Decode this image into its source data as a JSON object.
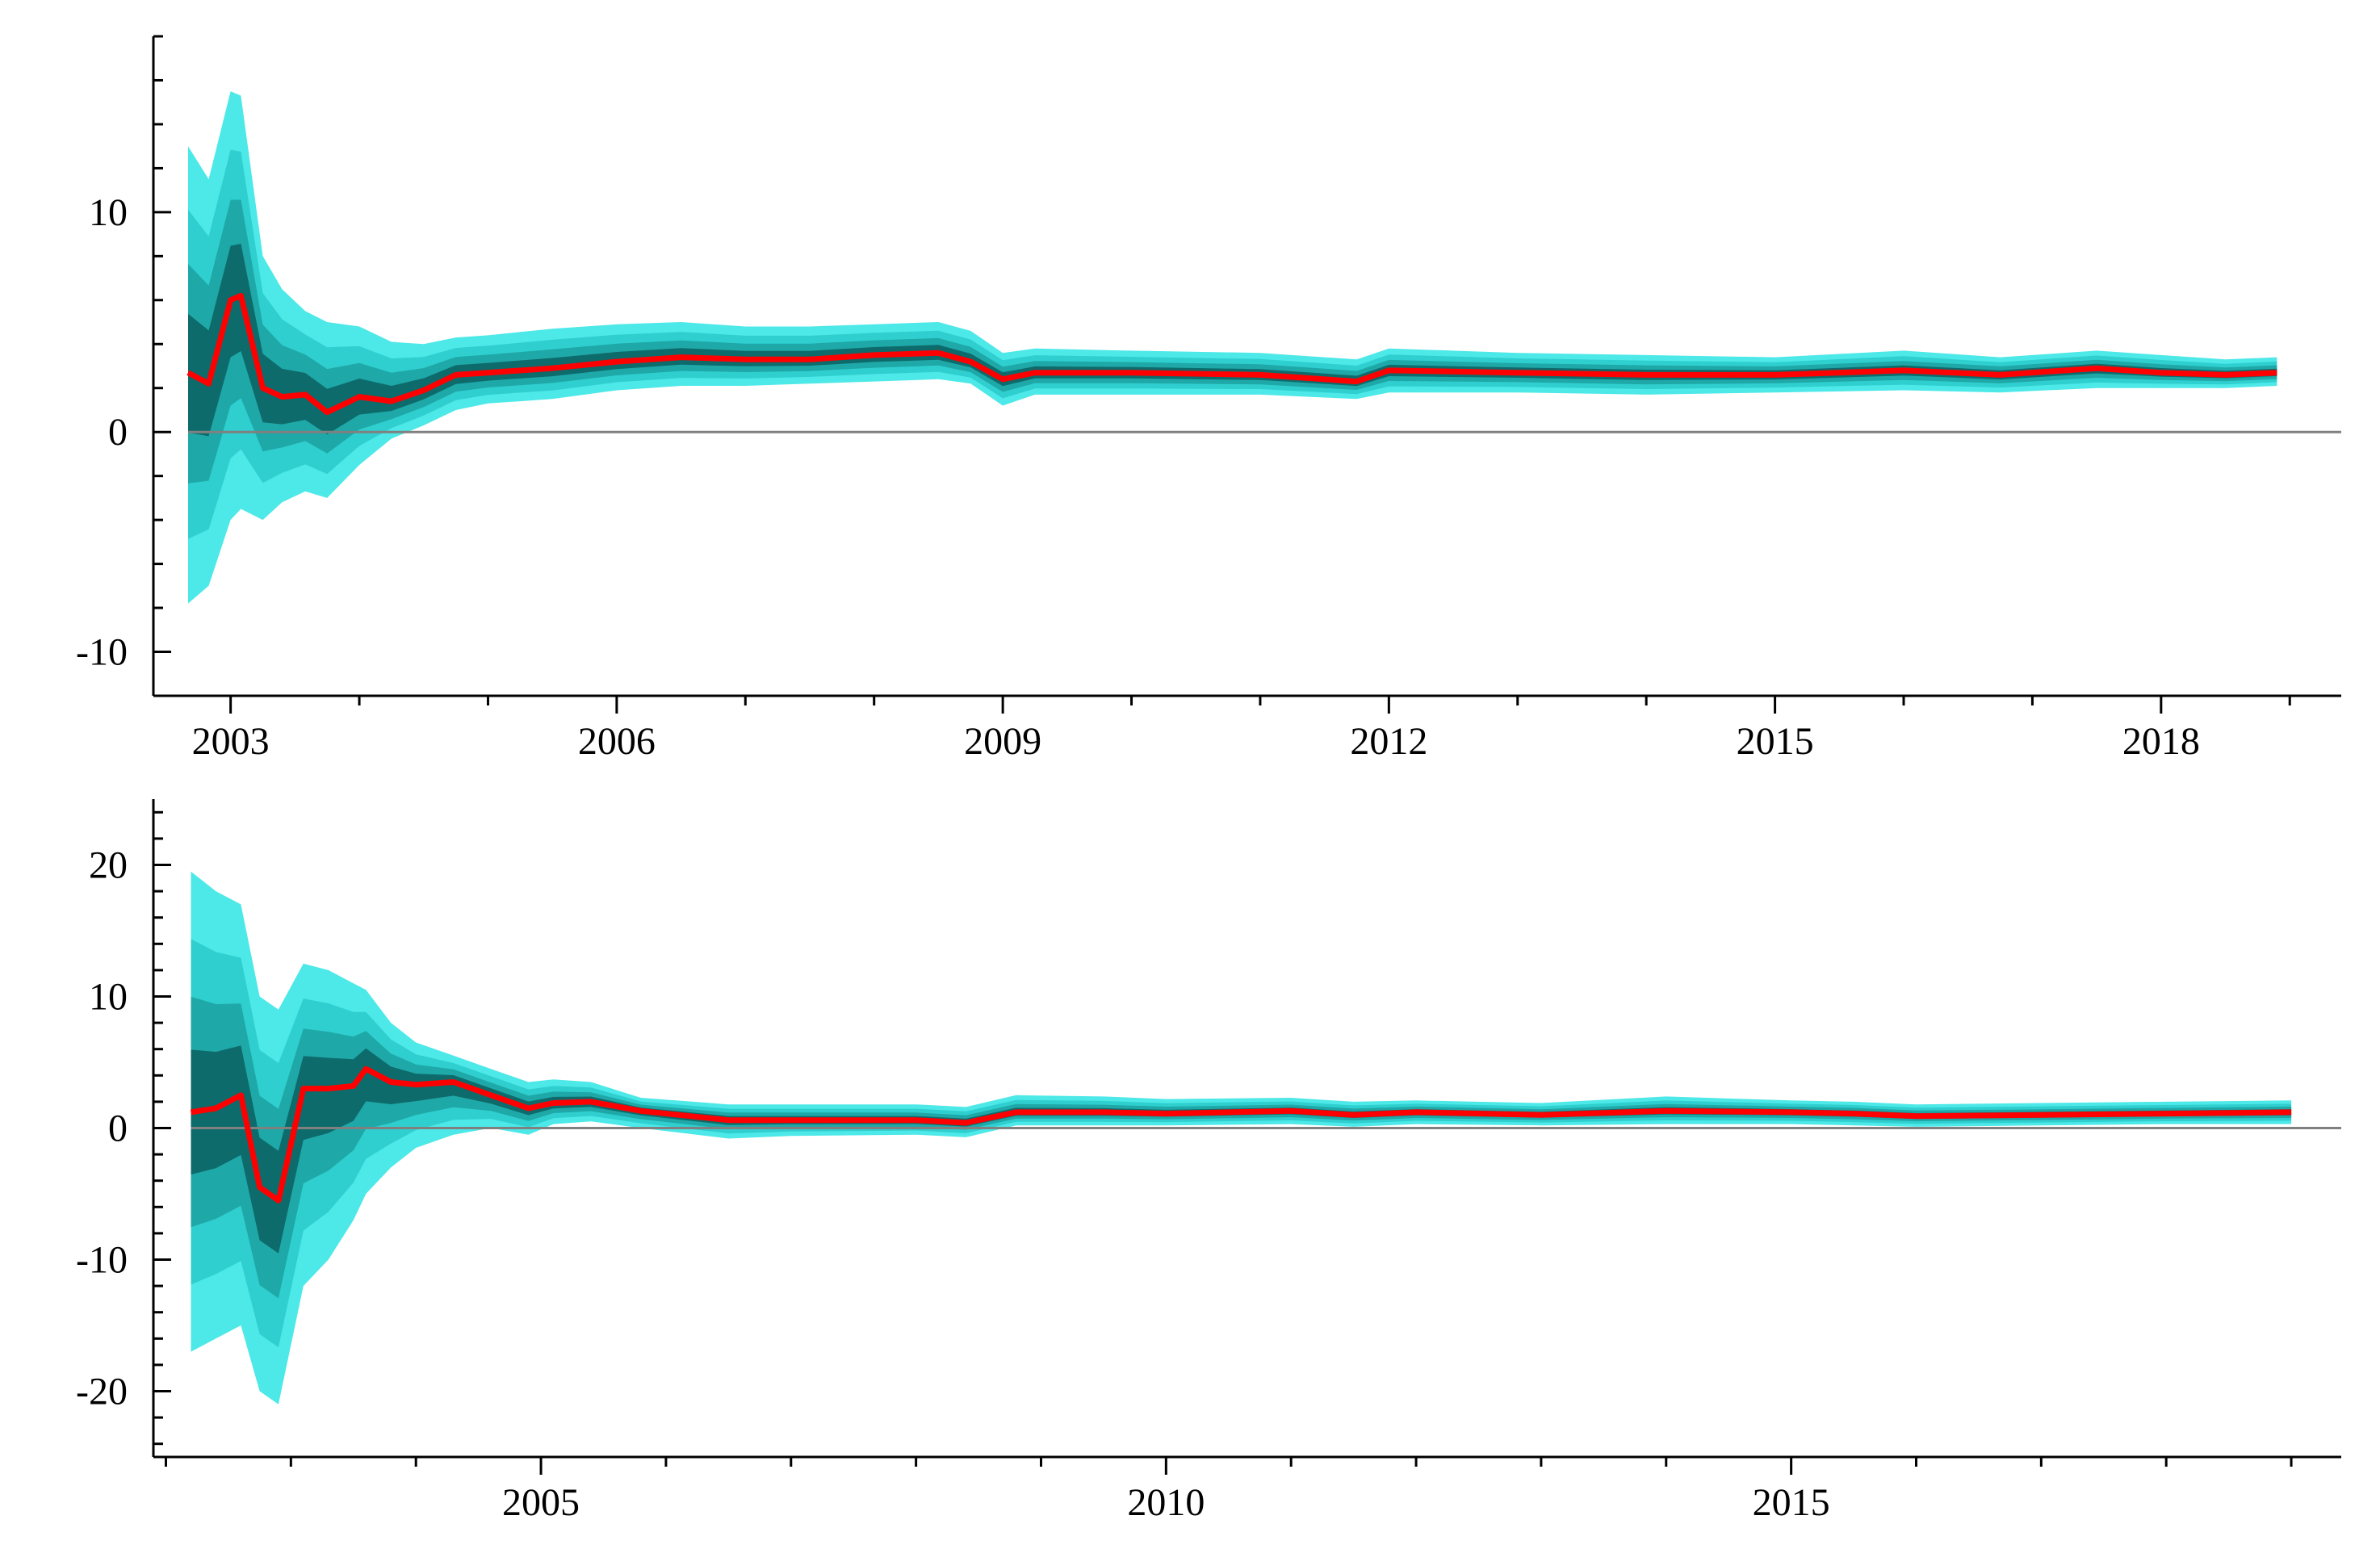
{
  "colors": {
    "band_outer": "#4de8e8",
    "band_mid_1": "#2fcfcf",
    "band_mid_2": "#1fa8a8",
    "band_inner": "#0e6b6b",
    "median_line": "#ff0000",
    "zero_line": "#808080",
    "axis": "#000000"
  },
  "chart_data": [
    {
      "type": "area",
      "title": "",
      "xlabel": "",
      "ylabel": "",
      "xlim": [
        2002.4,
        2019.4
      ],
      "ylim": [
        -12,
        18
      ],
      "xticks": [
        "2003",
        "2006",
        "2009",
        "2012",
        "2015",
        "2018"
      ],
      "yticks": [
        "10",
        "0",
        "-10"
      ],
      "grid": false,
      "reference_line_y": 0,
      "series": [
        {
          "x": [
            2002.67,
            2002.83,
            2003.0,
            2003.08,
            2003.25,
            2003.4,
            2003.58,
            2003.75,
            2004.0,
            2004.25,
            2004.5,
            2004.75,
            2005.0,
            2005.5,
            2006.0,
            2006.5,
            2007.0,
            2007.5,
            2008.0,
            2008.5,
            2008.75,
            2009.0,
            2009.25,
            2010.0,
            2011.0,
            2011.75,
            2012.0,
            2013.0,
            2014.0,
            2015.0,
            2016.0,
            2016.75,
            2017.5,
            2018.0,
            2018.5,
            2018.9
          ],
          "median": [
            2.7,
            2.2,
            6.0,
            6.2,
            2.0,
            1.6,
            1.7,
            0.9,
            1.6,
            1.4,
            1.9,
            2.6,
            2.7,
            2.9,
            3.2,
            3.4,
            3.3,
            3.3,
            3.5,
            3.6,
            3.2,
            2.4,
            2.7,
            2.7,
            2.6,
            2.3,
            2.8,
            2.7,
            2.6,
            2.6,
            2.8,
            2.6,
            2.9,
            2.7,
            2.6,
            2.7
          ],
          "outer_lo": [
            -7.8,
            -7.0,
            -4.0,
            -3.5,
            -4.0,
            -3.2,
            -2.7,
            -3.0,
            -1.5,
            -0.3,
            0.3,
            1.0,
            1.3,
            1.5,
            1.9,
            2.1,
            2.1,
            2.2,
            2.3,
            2.4,
            2.2,
            1.2,
            1.7,
            1.7,
            1.7,
            1.5,
            1.8,
            1.8,
            1.7,
            1.8,
            1.9,
            1.8,
            2.0,
            2.0,
            2.0,
            2.1
          ],
          "outer_hi": [
            13.0,
            11.5,
            15.5,
            15.3,
            8.0,
            6.5,
            5.5,
            5.0,
            4.8,
            4.1,
            4.0,
            4.3,
            4.4,
            4.7,
            4.9,
            5.0,
            4.8,
            4.8,
            4.9,
            5.0,
            4.6,
            3.6,
            3.8,
            3.7,
            3.6,
            3.3,
            3.8,
            3.6,
            3.5,
            3.4,
            3.7,
            3.4,
            3.7,
            3.5,
            3.3,
            3.4
          ]
        }
      ]
    },
    {
      "type": "area",
      "title": "",
      "xlabel": "",
      "ylabel": "",
      "xlim": [
        2001.9,
        2019.4
      ],
      "ylim": [
        -25,
        25
      ],
      "xticks": [
        "2005",
        "2010",
        "2015"
      ],
      "yticks": [
        "20",
        "10",
        "0",
        "-10",
        "-20"
      ],
      "grid": false,
      "reference_line_y": 0,
      "series": [
        {
          "x": [
            2002.2,
            2002.4,
            2002.6,
            2002.75,
            2002.9,
            2003.1,
            2003.3,
            2003.5,
            2003.6,
            2003.8,
            2004.0,
            2004.3,
            2004.6,
            2004.9,
            2005.1,
            2005.4,
            2005.8,
            2006.5,
            2007.0,
            2008.0,
            2008.4,
            2008.8,
            2009.5,
            2010.0,
            2011.0,
            2011.5,
            2012.0,
            2013.0,
            2014.0,
            2015.0,
            2015.5,
            2016.0,
            2017.0,
            2018.0,
            2019.0
          ],
          "median": [
            1.2,
            1.5,
            2.5,
            -4.5,
            -5.5,
            3.0,
            3.0,
            3.2,
            4.5,
            3.5,
            3.3,
            3.5,
            2.5,
            1.5,
            1.9,
            2.0,
            1.3,
            0.6,
            0.6,
            0.6,
            0.4,
            1.2,
            1.2,
            1.1,
            1.3,
            1.0,
            1.2,
            1.0,
            1.3,
            1.2,
            1.1,
            0.9,
            1.0,
            1.1,
            1.2
          ],
          "outer_lo": [
            -17.0,
            -16.0,
            -15.0,
            -20.0,
            -21.0,
            -12.0,
            -10.0,
            -7.0,
            -5.0,
            -3.0,
            -1.5,
            -0.5,
            0.0,
            -0.5,
            0.3,
            0.5,
            0.0,
            -0.8,
            -0.6,
            -0.5,
            -0.7,
            0.2,
            0.2,
            0.2,
            0.3,
            0.1,
            0.3,
            0.2,
            0.3,
            0.3,
            0.2,
            0.1,
            0.2,
            0.3,
            0.3
          ],
          "outer_hi": [
            19.5,
            18.0,
            17.0,
            10.0,
            9.0,
            12.5,
            12.0,
            11.0,
            10.5,
            8.0,
            6.5,
            5.5,
            4.5,
            3.5,
            3.7,
            3.5,
            2.3,
            1.8,
            1.8,
            1.8,
            1.6,
            2.5,
            2.4,
            2.2,
            2.3,
            2.0,
            2.1,
            1.9,
            2.4,
            2.1,
            2.0,
            1.8,
            1.9,
            2.0,
            2.1
          ]
        }
      ]
    }
  ]
}
